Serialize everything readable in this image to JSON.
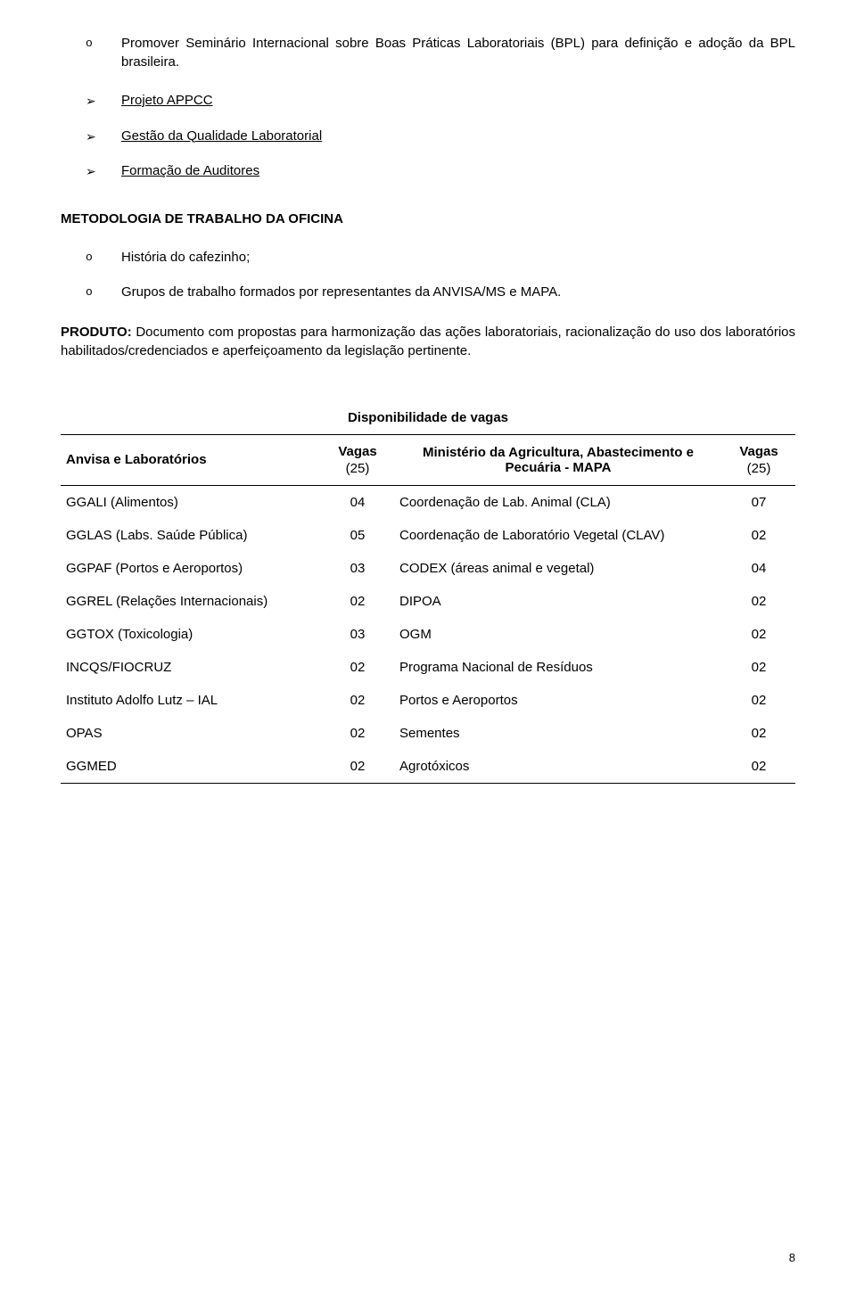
{
  "bullets": {
    "b1": "Promover Seminário Internacional sobre Boas Práticas Laboratoriais (BPL) para definição e adoção da BPL brasileira.",
    "b2": "Projeto APPCC",
    "b3": "Gestão da Qualidade Laboratorial",
    "b4": "Formação de Auditores"
  },
  "section_title": "METODOLOGIA DE TRABALHO DA OFICINA",
  "sub_bullets": {
    "s1": "História do cafezinho;",
    "s2": "Grupos de trabalho formados por representantes da ANVISA/MS e MAPA."
  },
  "produto_label": "PRODUTO:",
  "produto_text": " Documento com propostas para harmonização das ações laboratoriais, racionalização do uso dos laboratórios habilitados/credenciados e aperfeiçoamento da legislação pertinente.",
  "table": {
    "title": "Disponibilidade de vagas",
    "head": {
      "left": "Anvisa e Laboratórios",
      "vagas": "Vagas",
      "vagas_sub": "(25)",
      "min": "Ministério da Agricultura, Abastecimento e Pecuária - MAPA",
      "vagas2": "Vagas",
      "vagas2_sub": "(25)"
    },
    "rows": [
      {
        "a": "GGALI (Alimentos)",
        "av": "04",
        "b": "Coordenação de Lab. Animal (CLA)",
        "bv": "07"
      },
      {
        "a": "GGLAS (Labs. Saúde Pública)",
        "av": "05",
        "b": "Coordenação de Laboratório Vegetal (CLAV)",
        "bv": "02"
      },
      {
        "a": "GGPAF (Portos e Aeroportos)",
        "av": "03",
        "b": "CODEX (áreas animal e vegetal)",
        "bv": "04"
      },
      {
        "a": "GGREL (Relações Internacionais)",
        "av": "02",
        "b": "DIPOA",
        "bv": "02"
      },
      {
        "a": "GGTOX (Toxicologia)",
        "av": "03",
        "b": "OGM",
        "bv": "02"
      },
      {
        "a": "INCQS/FIOCRUZ",
        "av": "02",
        "b": "Programa Nacional de Resíduos",
        "bv": "02"
      },
      {
        "a": "Instituto Adolfo Lutz – IAL",
        "av": "02",
        "b": "Portos e Aeroportos",
        "bv": "02"
      },
      {
        "a": "OPAS",
        "av": "02",
        "b": "Sementes",
        "bv": "02"
      },
      {
        "a": "GGMED",
        "av": "02",
        "b": "Agrotóxicos",
        "bv": "02"
      }
    ]
  },
  "page_number": "8"
}
